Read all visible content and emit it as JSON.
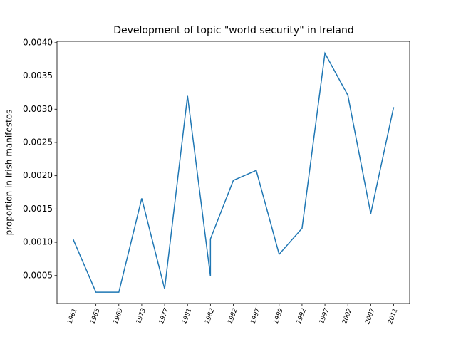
{
  "chart_data": {
    "type": "line",
    "title": "Development of topic \"world security\" in Ireland",
    "y_label": "proportion in Irish manifestos",
    "x": [
      0,
      1,
      2,
      3,
      4,
      5,
      6,
      6,
      7,
      8,
      9,
      10,
      11,
      12,
      13,
      14
    ],
    "series": [
      {
        "name": "world security",
        "color": "#1f77b4",
        "values": [
          0.00105,
          0.00025,
          0.00025,
          0.00166,
          0.0003,
          0.0032,
          0.00049,
          0.00105,
          0.00193,
          0.00208,
          0.00082,
          0.00121,
          0.00384,
          0.00321,
          0.00143,
          0.00303
        ]
      }
    ],
    "xlim": [
      -0.7,
      14.7
    ],
    "xticks": [
      {
        "value": 0,
        "label": "1961"
      },
      {
        "value": 1,
        "label": "1965"
      },
      {
        "value": 2,
        "label": "1969"
      },
      {
        "value": 3,
        "label": "1973"
      },
      {
        "value": 4,
        "label": "1977"
      },
      {
        "value": 5,
        "label": "1981"
      },
      {
        "value": 6,
        "label": "1982"
      },
      {
        "value": 7,
        "label": "1982"
      },
      {
        "value": 8,
        "label": "1987"
      },
      {
        "value": 9,
        "label": "1989"
      },
      {
        "value": 10,
        "label": "1992"
      },
      {
        "value": 11,
        "label": "1997"
      },
      {
        "value": 12,
        "label": "2002"
      },
      {
        "value": 13,
        "label": "2007"
      },
      {
        "value": 14,
        "label": "2011"
      }
    ],
    "ylim": [
      8e-05,
      0.00402
    ],
    "yticks": [
      {
        "value": 0.0005,
        "label": "0.0005"
      },
      {
        "value": 0.001,
        "label": "0.0010"
      },
      {
        "value": 0.0015,
        "label": "0.0015"
      },
      {
        "value": 0.002,
        "label": "0.0020"
      },
      {
        "value": 0.0025,
        "label": "0.0025"
      },
      {
        "value": 0.003,
        "label": "0.0030"
      },
      {
        "value": 0.0035,
        "label": "0.0035"
      },
      {
        "value": 0.004,
        "label": "0.0040"
      }
    ],
    "grid": false
  }
}
